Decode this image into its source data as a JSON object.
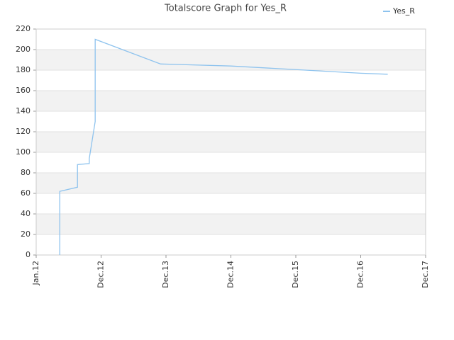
{
  "chart_data": {
    "type": "line",
    "title": "Totalscore Graph for Yes_R",
    "x": [
      "2012-05",
      "2012-05",
      "2012-08",
      "2012-08",
      "2012-10",
      "2012-10",
      "2012-11",
      "2012-11",
      "2013-11",
      "2014-12",
      "2015-12",
      "2016-12",
      "2017-05"
    ],
    "series": [
      {
        "name": "Yes_R",
        "color": "#8ec3ee",
        "values": [
          0,
          62,
          66,
          88,
          89,
          94,
          130,
          210,
          186,
          184,
          180.5,
          177,
          176
        ]
      }
    ],
    "xlim": [
      "2012-01",
      "2017-12"
    ],
    "xticks": [
      {
        "value": "2012-01",
        "label": "Jan.12"
      },
      {
        "value": "2012-12",
        "label": "Dec.12"
      },
      {
        "value": "2013-12",
        "label": "Dec.13"
      },
      {
        "value": "2014-12",
        "label": "Dec.14"
      },
      {
        "value": "2015-12",
        "label": "Dec.15"
      },
      {
        "value": "2016-12",
        "label": "Dec.16"
      },
      {
        "value": "2017-12",
        "label": "Dec.17"
      }
    ],
    "ylim": [
      0,
      220
    ],
    "yticks": [
      0,
      20,
      40,
      60,
      80,
      100,
      120,
      140,
      160,
      180,
      200,
      220
    ],
    "grid": true,
    "legend": "top-right"
  }
}
